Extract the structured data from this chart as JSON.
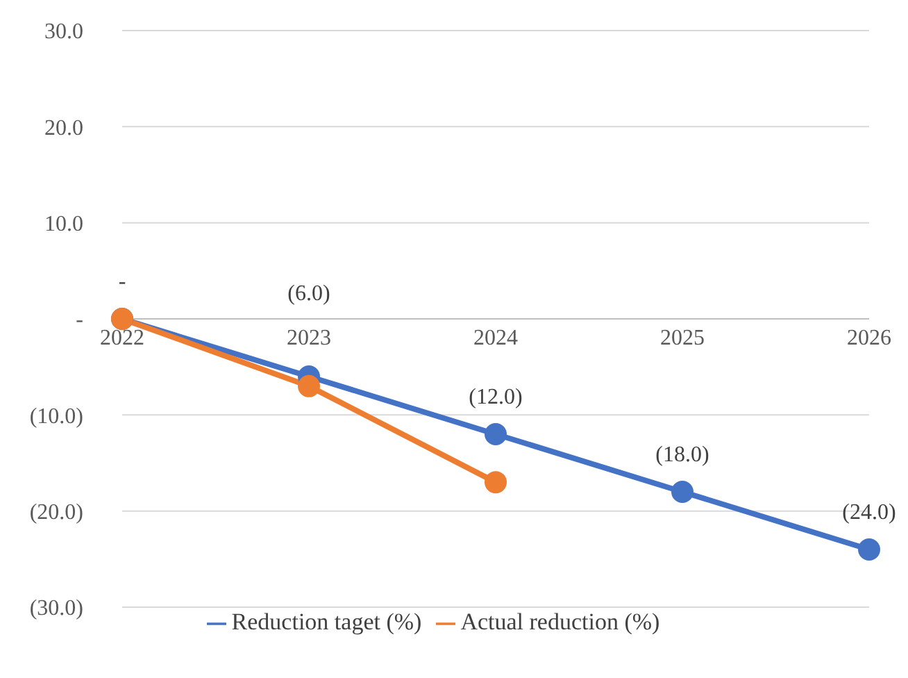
{
  "chart_data": {
    "type": "line",
    "categories": [
      "2022",
      "2023",
      "2024",
      "2025",
      "2026"
    ],
    "series": [
      {
        "name": "Reduction taget (%)",
        "color": "#4472c4",
        "values": [
          0,
          -6,
          -12,
          -18,
          -24
        ],
        "value_labels": [
          "-",
          "(6.0)",
          "(12.0)",
          "(18.0)",
          "(24.0)"
        ]
      },
      {
        "name": "Actual reduction (%)",
        "color": "#ed7d31",
        "values": [
          0,
          -7,
          -17,
          null,
          null
        ]
      }
    ],
    "ylim": [
      -30,
      30
    ],
    "yticks": [
      {
        "value": -30,
        "label": "(30.0)"
      },
      {
        "value": -20,
        "label": "(20.0)"
      },
      {
        "value": -10,
        "label": "(10.0)"
      },
      {
        "value": 0,
        "label": "-"
      },
      {
        "value": 10,
        "label": "10.0"
      },
      {
        "value": 20,
        "label": "20.0"
      },
      {
        "value": 30,
        "label": "30.0"
      }
    ],
    "grid": "y",
    "legend": "bottom",
    "marker": "circle",
    "line_style": "solid"
  }
}
